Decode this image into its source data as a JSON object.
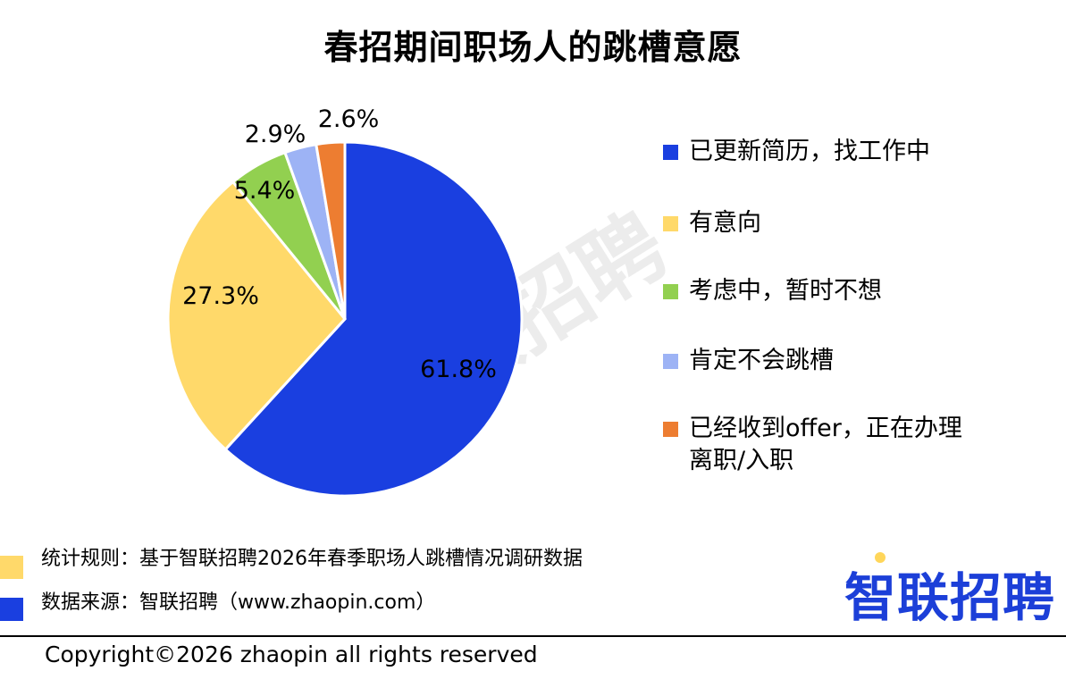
{
  "title": "春招期间职场人的跳槽意愿",
  "watermark": "智联招聘",
  "chart_data": {
    "type": "pie",
    "title": "春招期间职场人的跳槽意愿",
    "series": [
      {
        "name": "已更新简历，找工作中",
        "value": 61.8,
        "label": "61.8%",
        "color": "#1a3fe0"
      },
      {
        "name": "有意向",
        "value": 27.3,
        "label": "27.3%",
        "color": "#ffd96a"
      },
      {
        "name": "考虑中，暂时不想",
        "value": 5.4,
        "label": "5.4%",
        "color": "#92d050"
      },
      {
        "name": "肯定不会跳槽",
        "value": 2.9,
        "label": "2.9%",
        "color": "#9db3f5"
      },
      {
        "name": "已经收到offer，正在办理离职/入职",
        "value": 2.6,
        "label": "2.6%",
        "color": "#ed7d31"
      }
    ],
    "legend_position": "right"
  },
  "notes": [
    {
      "text": "统计规则：基于智联招聘2026年春季职场人跳槽情况调研数据",
      "color": "#ffd96a"
    },
    {
      "text": "数据来源：智联招聘（www.zhaopin.com）",
      "color": "#1a3fe0"
    }
  ],
  "logo_text": "智联招聘",
  "logo_color": "#1c3fd8",
  "copyright": "Copyright©2026 zhaopin all rights reserved"
}
